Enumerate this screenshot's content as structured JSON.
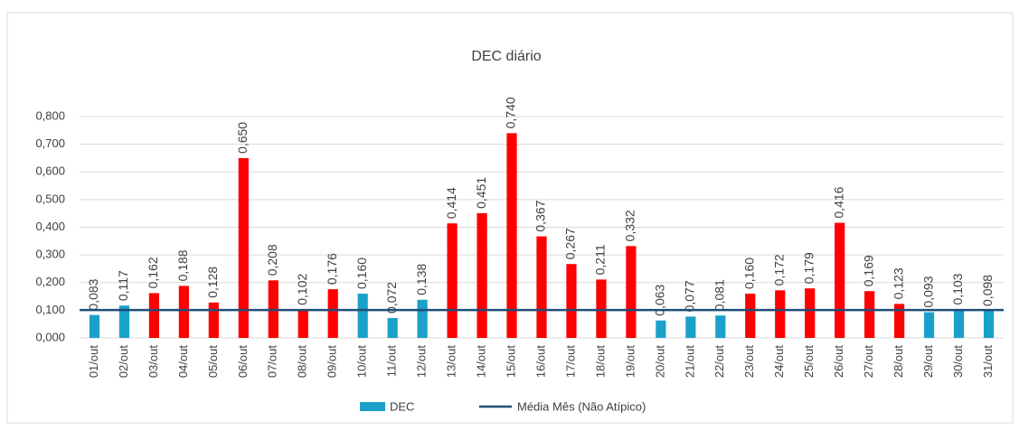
{
  "chart_data": {
    "type": "bar",
    "title": "DEC diário",
    "categories": [
      "01/out",
      "02/out",
      "03/out",
      "04/out",
      "05/out",
      "06/out",
      "07/out",
      "08/out",
      "09/out",
      "10/out",
      "11/out",
      "12/out",
      "13/out",
      "14/out",
      "15/out",
      "16/out",
      "17/out",
      "18/out",
      "19/out",
      "20/out",
      "21/out",
      "22/out",
      "23/out",
      "24/out",
      "25/out",
      "26/out",
      "27/out",
      "28/out",
      "29/out",
      "30/out",
      "31/out"
    ],
    "series": [
      {
        "name": "DEC",
        "color": "#1ba1c9",
        "values": [
          0.083,
          0.117,
          0.162,
          0.188,
          0.128,
          0.65,
          0.208,
          0.102,
          0.176,
          0.16,
          0.072,
          0.138,
          0.414,
          0.451,
          0.74,
          0.367,
          0.267,
          0.211,
          0.332,
          0.063,
          0.077,
          0.081,
          0.16,
          0.172,
          0.179,
          0.416,
          0.169,
          0.123,
          0.093,
          0.103,
          0.098
        ],
        "value_labels": [
          "0,083",
          "0,117",
          "0,162",
          "0,188",
          "0,128",
          "0,650",
          "0,208",
          "0,102",
          "0,176",
          "0,160",
          "0,072",
          "0,138",
          "0,414",
          "0,451",
          "0,740",
          "0,367",
          "0,267",
          "0,211",
          "0,332",
          "0,063",
          "0,077",
          "0,081",
          "0,160",
          "0,172",
          "0,179",
          "0,416",
          "0,169",
          "0,123",
          "0,093",
          "0,103",
          "0,098"
        ],
        "colors": [
          "#1ba1c9",
          "#1ba1c9",
          "#ff0000",
          "#ff0000",
          "#ff0000",
          "#ff0000",
          "#ff0000",
          "#ff0000",
          "#ff0000",
          "#1ba1c9",
          "#1ba1c9",
          "#1ba1c9",
          "#ff0000",
          "#ff0000",
          "#ff0000",
          "#ff0000",
          "#ff0000",
          "#ff0000",
          "#ff0000",
          "#1ba1c9",
          "#1ba1c9",
          "#1ba1c9",
          "#ff0000",
          "#ff0000",
          "#ff0000",
          "#ff0000",
          "#ff0000",
          "#ff0000",
          "#1ba1c9",
          "#1ba1c9",
          "#1ba1c9"
        ]
      }
    ],
    "reference_line": {
      "name": "Média Mês (Não Atípico)",
      "value": 0.101,
      "color": "#1f4e79"
    },
    "ylim": [
      0,
      0.8
    ],
    "yticks": [
      {
        "value": 0,
        "label": "0,000"
      },
      {
        "value": 0.1,
        "label": "0,100"
      },
      {
        "value": 0.2,
        "label": "0,200"
      },
      {
        "value": 0.3,
        "label": "0,300"
      },
      {
        "value": 0.4,
        "label": "0,400"
      },
      {
        "value": 0.5,
        "label": "0,500"
      },
      {
        "value": 0.6,
        "label": "0,600"
      },
      {
        "value": 0.7,
        "label": "0,700"
      },
      {
        "value": 0.8,
        "label": "0,800"
      }
    ],
    "grid": true
  }
}
